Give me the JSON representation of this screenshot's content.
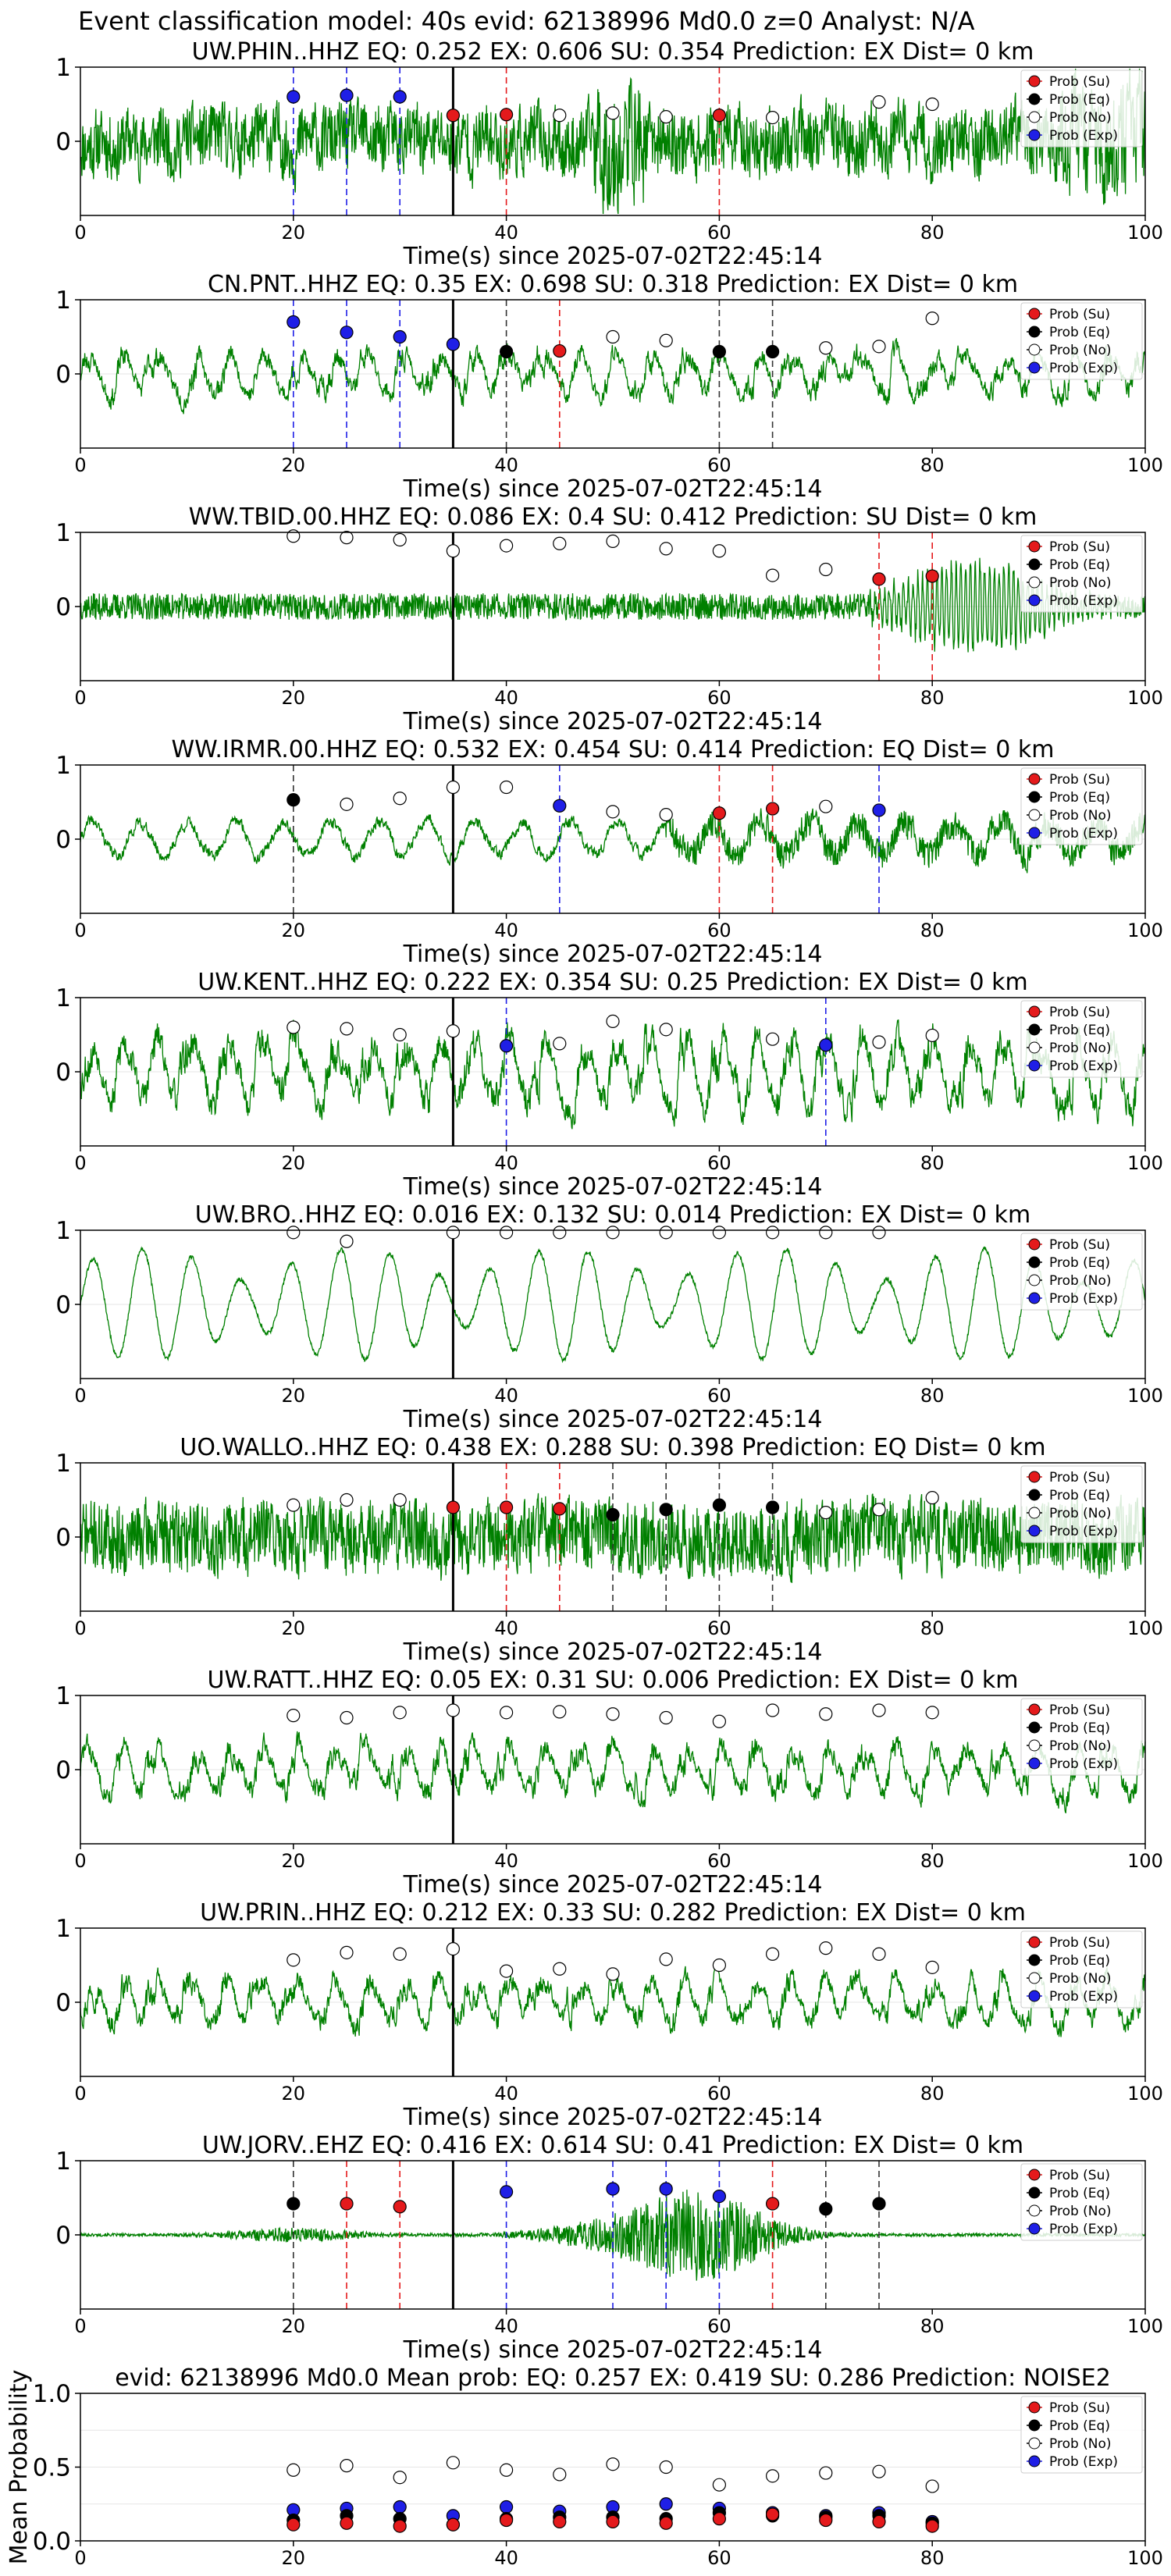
{
  "figure": {
    "suptitle": "Event classification model: 40s evid: 62138996 Md0.0 z=0 Analyst: N/A"
  },
  "chart_data": {
    "type": "multi-panel-line-scatter",
    "legend": {
      "placement": "top-right",
      "entries": [
        {
          "label": "Prob (Su)",
          "color": "#e41a1c",
          "hollow": false
        },
        {
          "label": "Prob (Eq)",
          "color": "#000000",
          "hollow": false
        },
        {
          "label": "Prob (No)",
          "color": "#ffffff",
          "hollow": true
        },
        {
          "label": "Prob (Exp)",
          "color": "#1f1fe6",
          "hollow": false
        }
      ]
    },
    "colors": {
      "waveform": "#008000",
      "su": "#e41a1c",
      "eq": "#000000",
      "exp": "#1f1fe6",
      "grid": "#e6e6e6"
    },
    "window_times": [
      20,
      25,
      30,
      35,
      40,
      45,
      50,
      55,
      60,
      65,
      70,
      75,
      80
    ],
    "origin_time": 35,
    "xlim": [
      0,
      100
    ],
    "xticks": [
      "0",
      "20",
      "40",
      "60",
      "80",
      "100"
    ],
    "panels": [
      {
        "title": "UW.PHIN..HHZ   EQ: 0.252  EX: 0.606  SU: 0.354   Prediction: EX    Dist= 0 km",
        "xlabel": "Time(s) since 2025-07-02T22:45:14",
        "ylim": [
          -1,
          1
        ],
        "yticks": [
          "1",
          "0"
        ],
        "waveform": {
          "style": "noise",
          "amp": 0.33,
          "seed": 11
        },
        "probs": [
          {
            "t": 20,
            "cls": "exp",
            "p": 0.6
          },
          {
            "t": 25,
            "cls": "exp",
            "p": 0.62
          },
          {
            "t": 30,
            "cls": "exp",
            "p": 0.6
          },
          {
            "t": 35,
            "cls": "su",
            "p": 0.35
          },
          {
            "t": 40,
            "cls": "su",
            "p": 0.36
          },
          {
            "t": 45,
            "cls": "no",
            "p": 0.35
          },
          {
            "t": 50,
            "cls": "no",
            "p": 0.38
          },
          {
            "t": 55,
            "cls": "no",
            "p": 0.33
          },
          {
            "t": 60,
            "cls": "su",
            "p": 0.35
          },
          {
            "t": 65,
            "cls": "no",
            "p": 0.32
          },
          {
            "t": 75,
            "cls": "no",
            "p": 0.53
          },
          {
            "t": 80,
            "cls": "no",
            "p": 0.5
          }
        ]
      },
      {
        "title": "CN.PNT..HHZ   EQ: 0.35  EX: 0.698  SU: 0.318   Prediction: EX    Dist= 0 km",
        "xlabel": "Time(s) since 2025-07-02T22:45:14",
        "ylim": [
          -1,
          1
        ],
        "yticks": [
          "1",
          "0"
        ],
        "waveform": {
          "style": "osc",
          "amp": 0.34,
          "seed": 23
        },
        "probs": [
          {
            "t": 20,
            "cls": "exp",
            "p": 0.7
          },
          {
            "t": 25,
            "cls": "exp",
            "p": 0.56
          },
          {
            "t": 30,
            "cls": "exp",
            "p": 0.5
          },
          {
            "t": 35,
            "cls": "exp",
            "p": 0.4
          },
          {
            "t": 40,
            "cls": "eq",
            "p": 0.3
          },
          {
            "t": 45,
            "cls": "su",
            "p": 0.31
          },
          {
            "t": 50,
            "cls": "no",
            "p": 0.5
          },
          {
            "t": 55,
            "cls": "no",
            "p": 0.45
          },
          {
            "t": 60,
            "cls": "eq",
            "p": 0.3
          },
          {
            "t": 65,
            "cls": "eq",
            "p": 0.3
          },
          {
            "t": 70,
            "cls": "no",
            "p": 0.35
          },
          {
            "t": 75,
            "cls": "no",
            "p": 0.37
          },
          {
            "t": 80,
            "cls": "no",
            "p": 0.75
          }
        ]
      },
      {
        "title": "WW.TBID.00.HHZ   EQ: 0.086  EX: 0.4  SU: 0.412   Prediction: SU    Dist= 0 km",
        "xlabel": "Time(s) since 2025-07-02T22:45:14",
        "ylim": [
          -1,
          1
        ],
        "yticks": [
          "1",
          "0"
        ],
        "waveform": {
          "style": "noise_burst",
          "amp": 0.18,
          "seed": 37
        },
        "probs": [
          {
            "t": 20,
            "cls": "no",
            "p": 0.95
          },
          {
            "t": 25,
            "cls": "no",
            "p": 0.93
          },
          {
            "t": 30,
            "cls": "no",
            "p": 0.9
          },
          {
            "t": 35,
            "cls": "no",
            "p": 0.75
          },
          {
            "t": 40,
            "cls": "no",
            "p": 0.82
          },
          {
            "t": 45,
            "cls": "no",
            "p": 0.85
          },
          {
            "t": 50,
            "cls": "no",
            "p": 0.88
          },
          {
            "t": 55,
            "cls": "no",
            "p": 0.78
          },
          {
            "t": 60,
            "cls": "no",
            "p": 0.75
          },
          {
            "t": 65,
            "cls": "no",
            "p": 0.42
          },
          {
            "t": 70,
            "cls": "no",
            "p": 0.5
          },
          {
            "t": 75,
            "cls": "su",
            "p": 0.37
          },
          {
            "t": 80,
            "cls": "su",
            "p": 0.41
          }
        ]
      },
      {
        "title": "WW.IRMR.00.HHZ   EQ: 0.532  EX: 0.454  SU: 0.414   Prediction: EQ    Dist= 0 km",
        "xlabel": "Time(s) since 2025-07-02T22:45:14",
        "ylim": [
          -1,
          1
        ],
        "yticks": [
          "1",
          "0"
        ],
        "waveform": {
          "style": "osc_low",
          "amp": 0.28,
          "seed": 41
        },
        "probs": [
          {
            "t": 20,
            "cls": "eq",
            "p": 0.53
          },
          {
            "t": 25,
            "cls": "no",
            "p": 0.47
          },
          {
            "t": 30,
            "cls": "no",
            "p": 0.55
          },
          {
            "t": 35,
            "cls": "no",
            "p": 0.7
          },
          {
            "t": 40,
            "cls": "no",
            "p": 0.7
          },
          {
            "t": 45,
            "cls": "exp",
            "p": 0.45
          },
          {
            "t": 50,
            "cls": "no",
            "p": 0.37
          },
          {
            "t": 55,
            "cls": "no",
            "p": 0.33
          },
          {
            "t": 60,
            "cls": "su",
            "p": 0.35
          },
          {
            "t": 65,
            "cls": "su",
            "p": 0.41
          },
          {
            "t": 70,
            "cls": "no",
            "p": 0.44
          },
          {
            "t": 75,
            "cls": "exp",
            "p": 0.39
          }
        ]
      },
      {
        "title": "UW.KENT..HHZ   EQ: 0.222  EX: 0.354  SU: 0.25   Prediction: EX    Dist= 0 km",
        "xlabel": "Time(s) since 2025-07-02T22:45:14",
        "ylim": [
          -1,
          1
        ],
        "yticks": [
          "1",
          "0"
        ],
        "waveform": {
          "style": "osc",
          "amp": 0.55,
          "seed": 53
        },
        "probs": [
          {
            "t": 20,
            "cls": "no",
            "p": 0.6
          },
          {
            "t": 25,
            "cls": "no",
            "p": 0.58
          },
          {
            "t": 30,
            "cls": "no",
            "p": 0.5
          },
          {
            "t": 35,
            "cls": "no",
            "p": 0.55
          },
          {
            "t": 40,
            "cls": "exp",
            "p": 0.35
          },
          {
            "t": 45,
            "cls": "no",
            "p": 0.38
          },
          {
            "t": 50,
            "cls": "no",
            "p": 0.68
          },
          {
            "t": 55,
            "cls": "no",
            "p": 0.57
          },
          {
            "t": 65,
            "cls": "no",
            "p": 0.44
          },
          {
            "t": 70,
            "cls": "exp",
            "p": 0.36
          },
          {
            "t": 75,
            "cls": "no",
            "p": 0.4
          },
          {
            "t": 80,
            "cls": "no",
            "p": 0.49
          }
        ]
      },
      {
        "title": "UW.BRO..HHZ   EQ: 0.016  EX: 0.132  SU: 0.014   Prediction: EX    Dist= 0 km",
        "xlabel": "Time(s) since 2025-07-02T22:45:14",
        "ylim": [
          -1,
          1
        ],
        "yticks": [
          "1",
          "0"
        ],
        "waveform": {
          "style": "swell",
          "amp": 0.75,
          "seed": 61
        },
        "probs": [
          {
            "t": 20,
            "cls": "no",
            "p": 0.97
          },
          {
            "t": 25,
            "cls": "no",
            "p": 0.85
          },
          {
            "t": 35,
            "cls": "no",
            "p": 0.97
          },
          {
            "t": 40,
            "cls": "no",
            "p": 0.97
          },
          {
            "t": 45,
            "cls": "no",
            "p": 0.97
          },
          {
            "t": 50,
            "cls": "no",
            "p": 0.97
          },
          {
            "t": 55,
            "cls": "no",
            "p": 0.97
          },
          {
            "t": 60,
            "cls": "no",
            "p": 0.97
          },
          {
            "t": 65,
            "cls": "no",
            "p": 0.97
          },
          {
            "t": 70,
            "cls": "no",
            "p": 0.97
          },
          {
            "t": 75,
            "cls": "no",
            "p": 0.97
          }
        ]
      },
      {
        "title": "UO.WALLO..HHZ   EQ: 0.438  EX: 0.288  SU: 0.398   Prediction: EQ    Dist= 0 km",
        "xlabel": "Time(s) since 2025-07-02T22:45:14",
        "ylim": [
          -1,
          1
        ],
        "yticks": [
          "1",
          "0"
        ],
        "waveform": {
          "style": "noise_dense",
          "amp": 0.4,
          "seed": 71
        },
        "probs": [
          {
            "t": 20,
            "cls": "no",
            "p": 0.43
          },
          {
            "t": 25,
            "cls": "no",
            "p": 0.5
          },
          {
            "t": 30,
            "cls": "no",
            "p": 0.5
          },
          {
            "t": 35,
            "cls": "su",
            "p": 0.4
          },
          {
            "t": 40,
            "cls": "su",
            "p": 0.4
          },
          {
            "t": 45,
            "cls": "su",
            "p": 0.38
          },
          {
            "t": 50,
            "cls": "eq",
            "p": 0.3
          },
          {
            "t": 55,
            "cls": "eq",
            "p": 0.37
          },
          {
            "t": 60,
            "cls": "eq",
            "p": 0.43
          },
          {
            "t": 65,
            "cls": "eq",
            "p": 0.4
          },
          {
            "t": 70,
            "cls": "no",
            "p": 0.33
          },
          {
            "t": 75,
            "cls": "no",
            "p": 0.37
          },
          {
            "t": 80,
            "cls": "no",
            "p": 0.53
          }
        ]
      },
      {
        "title": "UW.RATT..HHZ   EQ: 0.05  EX: 0.31  SU: 0.006   Prediction: EX    Dist= 0 km",
        "xlabel": "Time(s) since 2025-07-02T22:45:14",
        "ylim": [
          -1,
          1
        ],
        "yticks": [
          "1",
          "0"
        ],
        "waveform": {
          "style": "osc",
          "amp": 0.38,
          "seed": 83
        },
        "probs": [
          {
            "t": 20,
            "cls": "no",
            "p": 0.73
          },
          {
            "t": 25,
            "cls": "no",
            "p": 0.7
          },
          {
            "t": 30,
            "cls": "no",
            "p": 0.77
          },
          {
            "t": 35,
            "cls": "no",
            "p": 0.8
          },
          {
            "t": 40,
            "cls": "no",
            "p": 0.77
          },
          {
            "t": 45,
            "cls": "no",
            "p": 0.78
          },
          {
            "t": 50,
            "cls": "no",
            "p": 0.75
          },
          {
            "t": 55,
            "cls": "no",
            "p": 0.7
          },
          {
            "t": 60,
            "cls": "no",
            "p": 0.65
          },
          {
            "t": 65,
            "cls": "no",
            "p": 0.8
          },
          {
            "t": 70,
            "cls": "no",
            "p": 0.75
          },
          {
            "t": 75,
            "cls": "no",
            "p": 0.8
          },
          {
            "t": 80,
            "cls": "no",
            "p": 0.77
          }
        ]
      },
      {
        "title": "UW.PRIN..HHZ   EQ: 0.212  EX: 0.33  SU: 0.282   Prediction: EX    Dist= 0 km",
        "xlabel": "Time(s) since 2025-07-02T22:45:14",
        "ylim": [
          -1,
          1
        ],
        "yticks": [
          "1",
          "0"
        ],
        "waveform": {
          "style": "osc",
          "amp": 0.36,
          "seed": 97
        },
        "probs": [
          {
            "t": 20,
            "cls": "no",
            "p": 0.57
          },
          {
            "t": 25,
            "cls": "no",
            "p": 0.67
          },
          {
            "t": 30,
            "cls": "no",
            "p": 0.65
          },
          {
            "t": 35,
            "cls": "no",
            "p": 0.72
          },
          {
            "t": 40,
            "cls": "no",
            "p": 0.42
          },
          {
            "t": 45,
            "cls": "no",
            "p": 0.45
          },
          {
            "t": 50,
            "cls": "no",
            "p": 0.38
          },
          {
            "t": 55,
            "cls": "no",
            "p": 0.58
          },
          {
            "t": 60,
            "cls": "no",
            "p": 0.5
          },
          {
            "t": 65,
            "cls": "no",
            "p": 0.65
          },
          {
            "t": 70,
            "cls": "no",
            "p": 0.73
          },
          {
            "t": 75,
            "cls": "no",
            "p": 0.65
          },
          {
            "t": 80,
            "cls": "no",
            "p": 0.47
          }
        ]
      },
      {
        "title": "UW.JORV..EHZ   EQ: 0.416  EX: 0.614  SU: 0.41   Prediction: EX    Dist= 0 km",
        "xlabel": "Time(s) since 2025-07-02T22:45:14",
        "ylim": [
          -1,
          1
        ],
        "yticks": [
          "1",
          "0"
        ],
        "waveform": {
          "style": "event",
          "amp": 0.02,
          "seed": 101
        },
        "probs": [
          {
            "t": 20,
            "cls": "eq",
            "p": 0.42
          },
          {
            "t": 25,
            "cls": "su",
            "p": 0.42
          },
          {
            "t": 30,
            "cls": "su",
            "p": 0.38
          },
          {
            "t": 40,
            "cls": "exp",
            "p": 0.58
          },
          {
            "t": 50,
            "cls": "exp",
            "p": 0.62
          },
          {
            "t": 55,
            "cls": "exp",
            "p": 0.62
          },
          {
            "t": 60,
            "cls": "exp",
            "p": 0.52
          },
          {
            "t": 65,
            "cls": "su",
            "p": 0.42
          },
          {
            "t": 70,
            "cls": "eq",
            "p": 0.35
          },
          {
            "t": 75,
            "cls": "eq",
            "p": 0.42
          }
        ]
      }
    ],
    "summary": {
      "title": "evid: 62138996  Md0.0   Mean prob:   EQ: 0.257  EX: 0.419  SU: 0.286   Prediction: NOISE2",
      "ylabel": "Mean Probability",
      "ylim": [
        0,
        1
      ],
      "yticks": [
        "0.0",
        "0.5",
        "1.0"
      ],
      "t": [
        20,
        25,
        30,
        35,
        40,
        45,
        50,
        55,
        60,
        65,
        70,
        75,
        80
      ],
      "no": [
        0.48,
        0.51,
        0.43,
        0.53,
        0.48,
        0.45,
        0.52,
        0.5,
        0.38,
        0.44,
        0.46,
        0.47,
        0.37
      ],
      "exp": [
        0.21,
        0.22,
        0.23,
        0.17,
        0.23,
        0.2,
        0.23,
        0.25,
        0.22,
        0.19,
        0.17,
        0.19,
        0.13
      ],
      "eq": [
        0.14,
        0.17,
        0.15,
        0.11,
        0.15,
        0.16,
        0.16,
        0.15,
        0.19,
        0.17,
        0.16,
        0.17,
        0.12
      ],
      "su": [
        0.11,
        0.12,
        0.1,
        0.11,
        0.14,
        0.13,
        0.13,
        0.12,
        0.15,
        0.18,
        0.14,
        0.13,
        0.1
      ]
    }
  }
}
